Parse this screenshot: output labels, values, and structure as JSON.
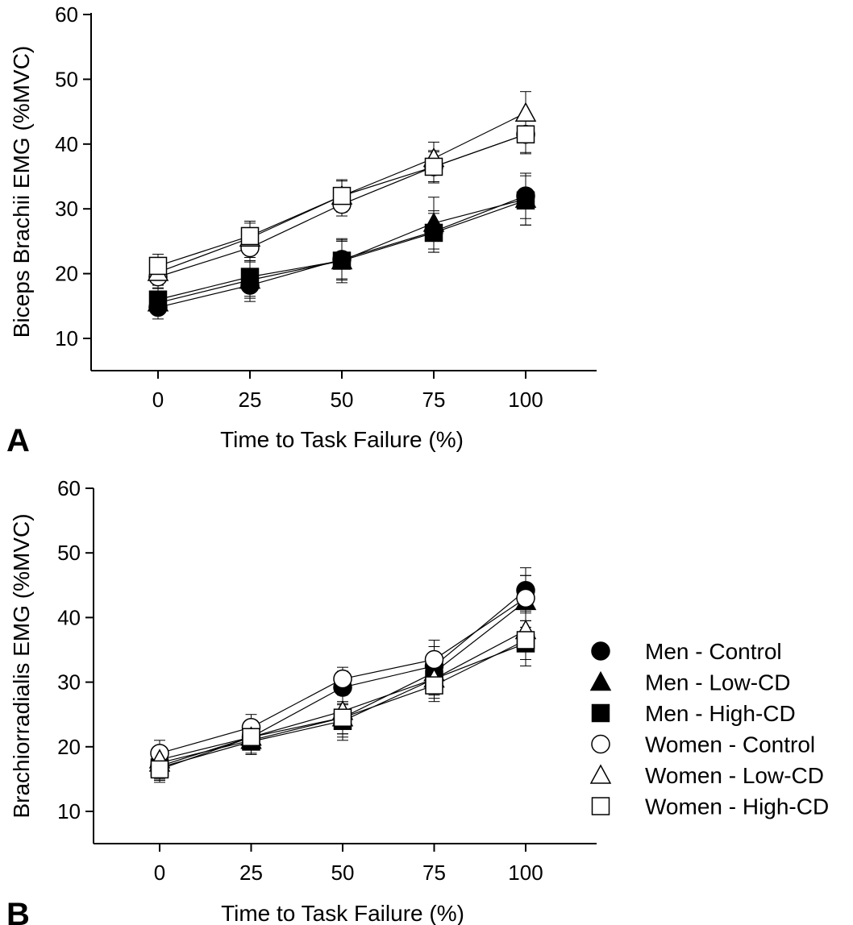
{
  "chart_data": [
    {
      "type": "line",
      "panel": "A",
      "xlabel": "Time to Task Failure (%)",
      "ylabel": "Biceps Brachii EMG (%MVC)",
      "x": [
        0,
        25,
        50,
        75,
        100
      ],
      "x_tick_labels": [
        "0",
        "25",
        "50",
        "75",
        "100"
      ],
      "y_tick_labels": [
        "10",
        "20",
        "30",
        "40",
        "50",
        "60"
      ],
      "xlim": [
        -20,
        120
      ],
      "ylim": [
        5,
        60
      ],
      "grid": false,
      "series": [
        {
          "name": "Men - Control",
          "marker": "filled-circle",
          "values": [
            14.8,
            18.2,
            22.2,
            26.5,
            32.0
          ],
          "errors": [
            1.8,
            2.5,
            3.0,
            3.2,
            3.5
          ]
        },
        {
          "name": "Men - Low-CD",
          "marker": "filled-triangle",
          "values": [
            15.5,
            19.0,
            22.0,
            27.8,
            31.5
          ],
          "errors": [
            1.8,
            2.8,
            3.4,
            4.0,
            4.0
          ]
        },
        {
          "name": "Men - High-CD",
          "marker": "filled-square",
          "values": [
            16.0,
            19.5,
            22.0,
            26.3,
            31.3
          ],
          "errors": [
            1.8,
            3.0,
            3.0,
            3.0,
            3.8
          ]
        },
        {
          "name": "Women - Control",
          "marker": "open-circle",
          "values": [
            19.5,
            24.0,
            30.7,
            36.5,
            41.5
          ],
          "errors": [
            1.8,
            2.0,
            1.8,
            2.5,
            3.0
          ]
        },
        {
          "name": "Women - Low-CD",
          "marker": "open-triangle",
          "values": [
            20.2,
            25.5,
            32.0,
            37.8,
            44.8
          ],
          "errors": [
            2.0,
            2.3,
            2.5,
            2.5,
            3.3
          ]
        },
        {
          "name": "Women - High-CD",
          "marker": "open-square",
          "values": [
            21.2,
            25.8,
            32.0,
            36.5,
            41.5
          ],
          "errors": [
            1.8,
            2.3,
            2.3,
            2.3,
            2.8
          ]
        }
      ]
    },
    {
      "type": "line",
      "panel": "B",
      "xlabel": "Time to Task Failure (%)",
      "ylabel": "Brachiorradialis EMG (%MVC)",
      "x": [
        0,
        25,
        50,
        75,
        100
      ],
      "x_tick_labels": [
        "0",
        "25",
        "50",
        "75",
        "100"
      ],
      "y_tick_labels": [
        "10",
        "20",
        "30",
        "40",
        "50",
        "60"
      ],
      "xlim": [
        -20,
        120
      ],
      "ylim": [
        5,
        60
      ],
      "grid": false,
      "legend_position": "right",
      "series": [
        {
          "name": "Men - Control",
          "marker": "filled-circle",
          "values": [
            17.0,
            21.5,
            29.2,
            32.5,
            44.2
          ],
          "errors": [
            2.0,
            2.0,
            2.5,
            3.0,
            3.5
          ]
        },
        {
          "name": "Men - Low-CD",
          "marker": "filled-triangle",
          "values": [
            17.5,
            21.0,
            24.5,
            31.5,
            42.5
          ],
          "errors": [
            2.0,
            2.0,
            2.5,
            3.0,
            4.0
          ]
        },
        {
          "name": "Men - High-CD",
          "marker": "filled-square",
          "values": [
            16.8,
            20.8,
            24.0,
            30.5,
            36.0
          ],
          "errors": [
            2.0,
            2.0,
            2.5,
            3.0,
            3.5
          ]
        },
        {
          "name": "Women - Control",
          "marker": "open-circle",
          "values": [
            19.0,
            23.0,
            30.5,
            33.5,
            43.0
          ],
          "errors": [
            2.0,
            2.0,
            1.8,
            3.0,
            3.5
          ]
        },
        {
          "name": "Women - Low-CD",
          "marker": "open-triangle",
          "values": [
            18.0,
            21.5,
            25.5,
            30.5,
            38.0
          ],
          "errors": [
            2.0,
            2.0,
            3.5,
            2.5,
            3.0
          ]
        },
        {
          "name": "Women - High-CD",
          "marker": "open-square",
          "values": [
            16.5,
            21.5,
            24.5,
            29.5,
            36.5
          ],
          "errors": [
            2.0,
            2.0,
            3.5,
            2.5,
            3.0
          ]
        }
      ]
    }
  ],
  "legend": {
    "items": [
      {
        "label": "Men - Control",
        "marker": "filled-circle"
      },
      {
        "label": "Men - Low-CD",
        "marker": "filled-triangle"
      },
      {
        "label": "Men - High-CD",
        "marker": "filled-square"
      },
      {
        "label": "Women - Control",
        "marker": "open-circle"
      },
      {
        "label": "Women - Low-CD",
        "marker": "open-triangle"
      },
      {
        "label": "Women - High-CD",
        "marker": "open-square"
      }
    ]
  }
}
